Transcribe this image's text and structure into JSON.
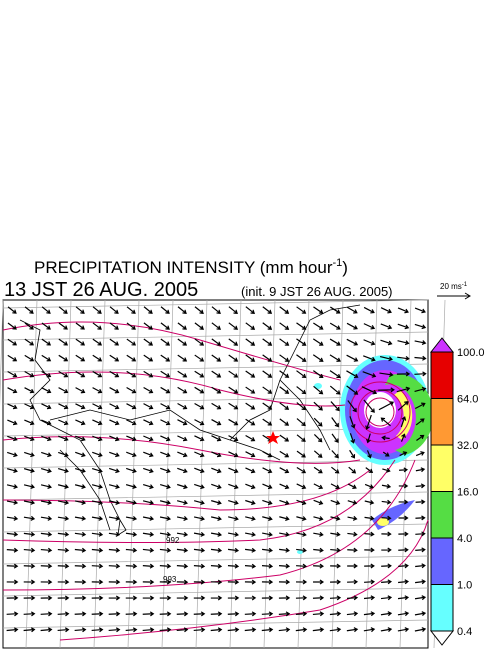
{
  "header": {
    "title": "PRECIPITATION INTENSITY (mm hour",
    "title_sup": "-1",
    "title_close": ")",
    "valid_time": "13 JST 26 AUG. 2005",
    "init_time": "(init. 9 JST 26 AUG. 2005)"
  },
  "vector_key": {
    "label": "20 ms",
    "label_sup": "-1"
  },
  "colorbar": {
    "labels": [
      "100.0",
      "64.0",
      "32.0",
      "16.0",
      "4.0",
      "1.0",
      "0.4"
    ],
    "colors": [
      "#cc33ff",
      "#e60000",
      "#ff9933",
      "#ffff66",
      "#55dd44",
      "#6666ff",
      "#66ffff",
      "#ffffff"
    ]
  },
  "contour_labels": [
    "992",
    "993"
  ]
}
